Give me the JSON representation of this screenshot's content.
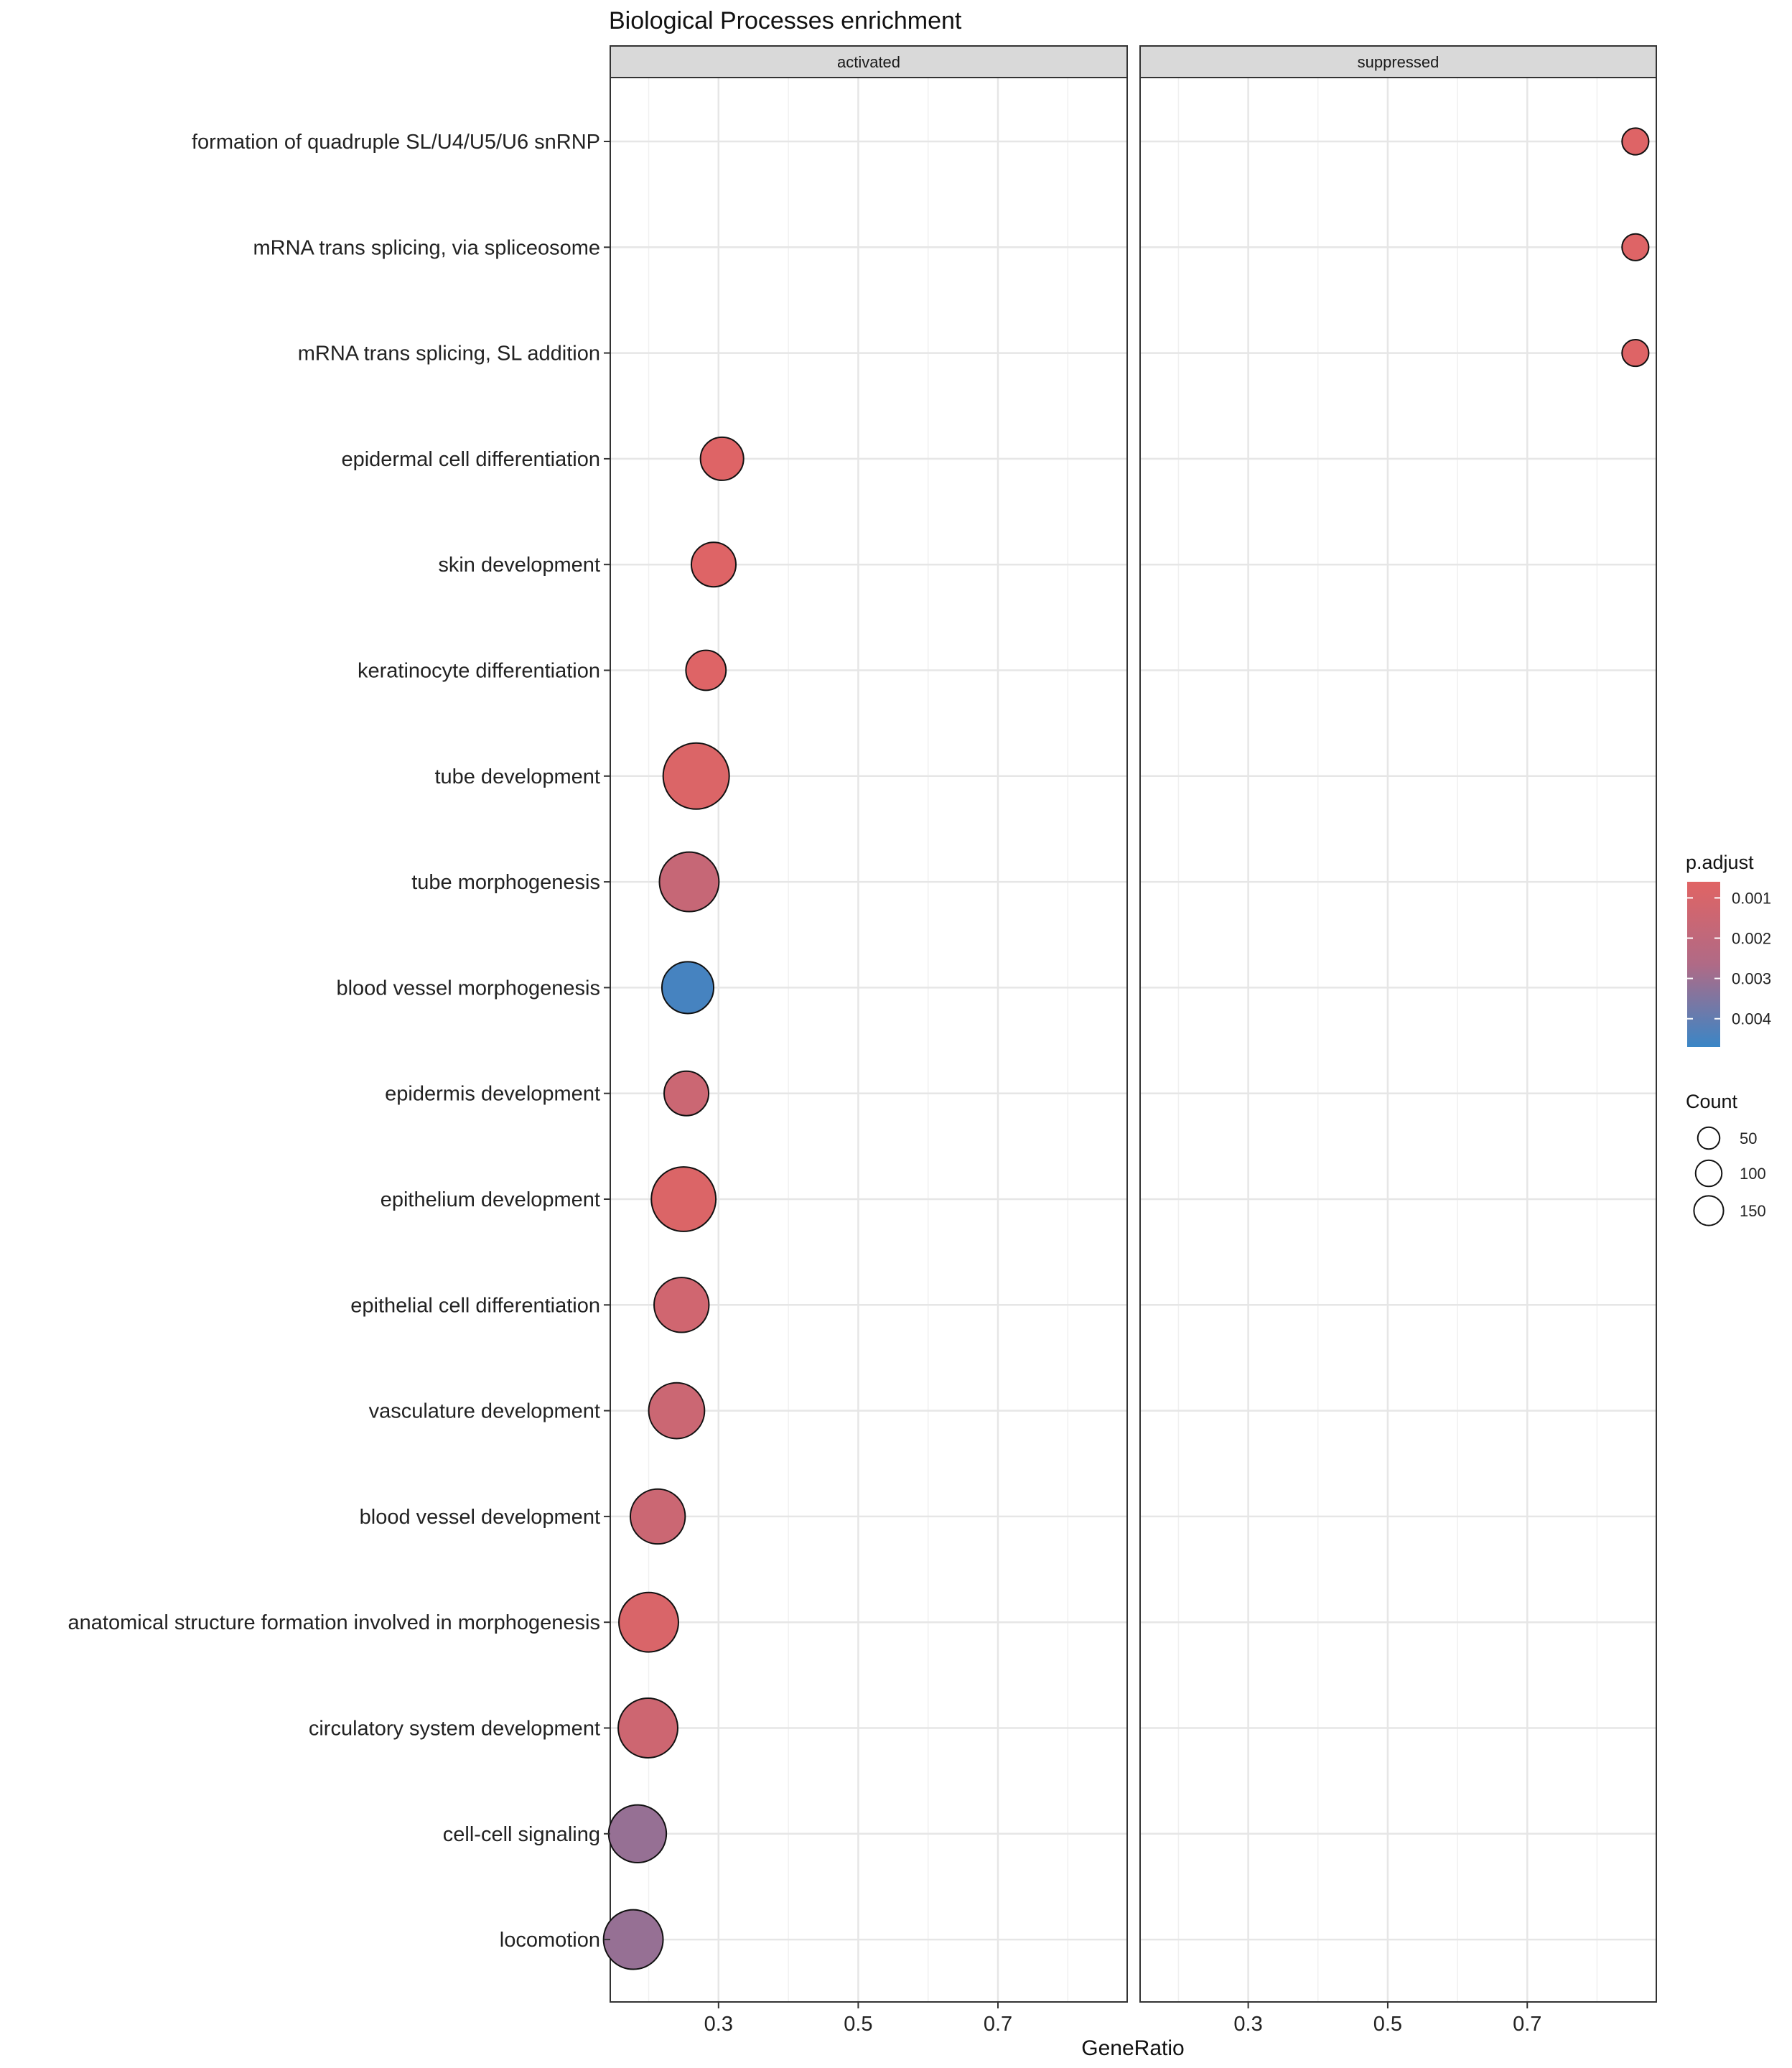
{
  "chart_data": {
    "type": "scatter",
    "title": "Biological Processes enrichment",
    "xlabel": "GeneRatio",
    "ylabel": "",
    "xlim": [
      0.145,
      0.885
    ],
    "xticks": [
      0.3,
      0.5,
      0.7
    ],
    "xtick_labels": [
      "0.3",
      "0.5",
      "0.7"
    ],
    "minor_xticks": [
      0.2,
      0.4,
      0.6,
      0.8
    ],
    "grid": true,
    "facets": [
      "activated",
      "suppressed"
    ],
    "categories": [
      "formation of quadruple SL/U4/U5/U6 snRNP",
      "mRNA trans splicing, via spliceosome",
      "mRNA trans splicing, SL addition",
      "epidermal cell differentiation",
      "skin development",
      "keratinocyte differentiation",
      "tube development",
      "tube morphogenesis",
      "blood vessel morphogenesis",
      "epidermis development",
      "epithelium development",
      "epithelial cell differentiation",
      "vasculature development",
      "blood vessel development",
      "anatomical structure formation involved in morphogenesis",
      "circulatory system development",
      "cell-cell signaling",
      "locomotion"
    ],
    "points": [
      {
        "facet": "suppressed",
        "category": "formation of quadruple SL/U4/U5/U6 snRNP",
        "gene_ratio": 0.855,
        "count": 6,
        "p_adjust": 0.0007
      },
      {
        "facet": "suppressed",
        "category": "mRNA trans splicing, via spliceosome",
        "gene_ratio": 0.855,
        "count": 6,
        "p_adjust": 0.0007
      },
      {
        "facet": "suppressed",
        "category": "mRNA trans splicing, SL addition",
        "gene_ratio": 0.855,
        "count": 6,
        "p_adjust": 0.0007
      },
      {
        "facet": "activated",
        "category": "epidermal cell differentiation",
        "gene_ratio": 0.305,
        "count": 45,
        "p_adjust": 0.0007
      },
      {
        "facet": "activated",
        "category": "skin development",
        "gene_ratio": 0.293,
        "count": 50,
        "p_adjust": 0.0007
      },
      {
        "facet": "activated",
        "category": "keratinocyte differentiation",
        "gene_ratio": 0.282,
        "count": 35,
        "p_adjust": 0.0007
      },
      {
        "facet": "activated",
        "category": "tube development",
        "gene_ratio": 0.268,
        "count": 160,
        "p_adjust": 0.0008
      },
      {
        "facet": "activated",
        "category": "tube morphogenesis",
        "gene_ratio": 0.258,
        "count": 120,
        "p_adjust": 0.0017
      },
      {
        "facet": "activated",
        "category": "blood vessel morphogenesis",
        "gene_ratio": 0.256,
        "count": 80,
        "p_adjust": 0.0045
      },
      {
        "facet": "activated",
        "category": "epidermis development",
        "gene_ratio": 0.254,
        "count": 50,
        "p_adjust": 0.0015
      },
      {
        "facet": "activated",
        "category": "epithelium development",
        "gene_ratio": 0.25,
        "count": 150,
        "p_adjust": 0.0008
      },
      {
        "facet": "activated",
        "category": "epithelial cell differentiation",
        "gene_ratio": 0.247,
        "count": 95,
        "p_adjust": 0.0013
      },
      {
        "facet": "activated",
        "category": "vasculature development",
        "gene_ratio": 0.24,
        "count": 100,
        "p_adjust": 0.0015
      },
      {
        "facet": "activated",
        "category": "blood vessel development",
        "gene_ratio": 0.213,
        "count": 95,
        "p_adjust": 0.0015
      },
      {
        "facet": "activated",
        "category": "anatomical structure formation involved in morphogenesis",
        "gene_ratio": 0.2,
        "count": 120,
        "p_adjust": 0.0009
      },
      {
        "facet": "activated",
        "category": "circulatory system development",
        "gene_ratio": 0.199,
        "count": 120,
        "p_adjust": 0.0014
      },
      {
        "facet": "activated",
        "category": "cell-cell signaling",
        "gene_ratio": 0.184,
        "count": 110,
        "p_adjust": 0.0031
      },
      {
        "facet": "activated",
        "category": "locomotion",
        "gene_ratio": 0.178,
        "count": 120,
        "p_adjust": 0.0031
      }
    ],
    "color_legend": {
      "title": "p.adjust",
      "ticks": [
        "0.001",
        "0.002",
        "0.003",
        "0.004"
      ],
      "tick_values": [
        0.001,
        0.002,
        0.003,
        0.004
      ],
      "range": [
        0.0006,
        0.0047
      ],
      "low_color": "#e06464",
      "high_color": "#3a86c6"
    },
    "size_legend": {
      "title": "Count",
      "values": [
        50,
        100,
        150
      ],
      "labels": [
        "50",
        "100",
        "150"
      ]
    },
    "legend_position": "right"
  }
}
